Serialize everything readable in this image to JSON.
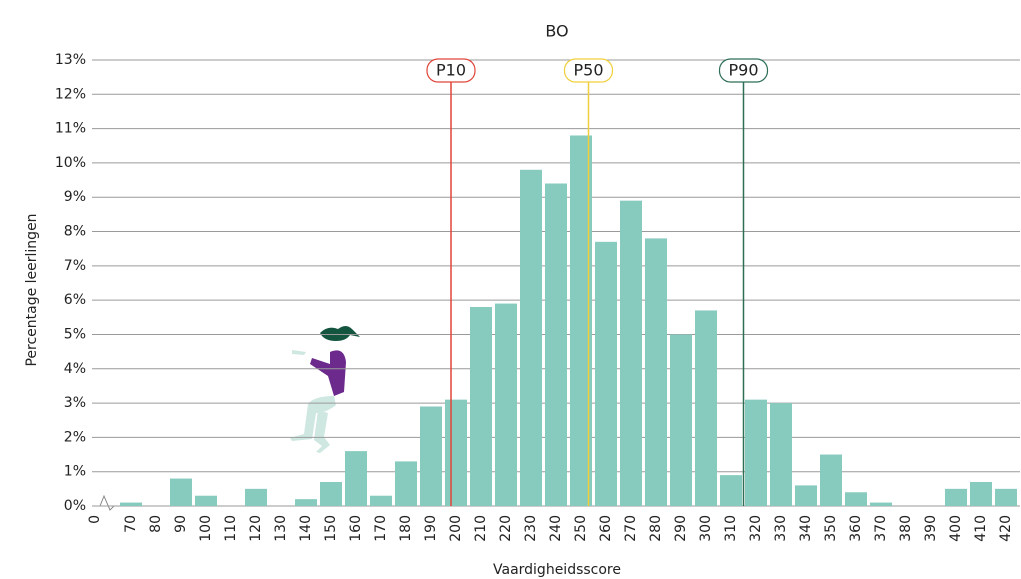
{
  "chart_data": {
    "type": "bar",
    "title": "BO",
    "x_label": "Vaardigheidsscore",
    "y_label": "Percentage leerlingen",
    "categories": [
      "0",
      "70",
      "80",
      "90",
      "100",
      "110",
      "120",
      "130",
      "140",
      "150",
      "160",
      "170",
      "180",
      "190",
      "200",
      "210",
      "220",
      "230",
      "240",
      "250",
      "260",
      "270",
      "280",
      "290",
      "300",
      "310",
      "320",
      "330",
      "340",
      "350",
      "360",
      "370",
      "380",
      "390",
      "400",
      "410",
      "420"
    ],
    "values": [
      null,
      0.1,
      0,
      0.8,
      0.3,
      0,
      0.5,
      0,
      0.2,
      0.7,
      1.6,
      0.3,
      1.3,
      2.9,
      3.1,
      5.8,
      5.9,
      9.8,
      9.4,
      10.8,
      7.7,
      8.9,
      7.8,
      5.0,
      5.7,
      0.9,
      3.1,
      3.0,
      0.6,
      1.5,
      0.4,
      0.1,
      0,
      0,
      0.5,
      0.7,
      0.5
    ],
    "color": "#87cbbf",
    "ylim": [
      0,
      13
    ],
    "yticks": [
      {
        "value": 0,
        "label": "0%"
      },
      {
        "value": 1,
        "label": "1%"
      },
      {
        "value": 2,
        "label": "2%"
      },
      {
        "value": 3,
        "label": "3%"
      },
      {
        "value": 4,
        "label": "4%"
      },
      {
        "value": 5,
        "label": "5%"
      },
      {
        "value": 6,
        "label": "6%"
      },
      {
        "value": 7,
        "label": "7%"
      },
      {
        "value": 8,
        "label": "8%"
      },
      {
        "value": 9,
        "label": "9%"
      },
      {
        "value": 10,
        "label": "10%"
      },
      {
        "value": 11,
        "label": "11%"
      },
      {
        "value": 12,
        "label": "12%"
      },
      {
        "value": 13,
        "label": "13%"
      }
    ],
    "grid": true,
    "percentiles": [
      {
        "label": "P10",
        "value": 198,
        "color": "#e0453a"
      },
      {
        "label": "P50",
        "value": 253,
        "color": "#f0cf3c"
      },
      {
        "label": "P90",
        "value": 315,
        "color": "#2d6e55"
      }
    ]
  }
}
